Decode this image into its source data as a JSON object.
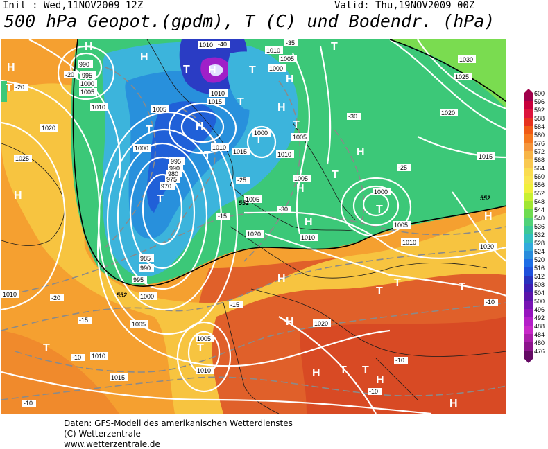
{
  "header": {
    "init": "Init : Wed,11NOV2009  12Z",
    "valid": "Valid: Thu,19NOV2009 00Z",
    "title": "500 hPa Geopot.(gpdm), T (C) und Bodendr. (hPa)"
  },
  "map": {
    "pressure_systems": [
      "H",
      "T",
      "H",
      "T",
      "H",
      "T",
      "T",
      "H",
      "H",
      "T",
      "T",
      "H",
      "T",
      "T",
      "H",
      "T",
      "H",
      "H",
      "T",
      "H",
      "T",
      "H",
      "T",
      "T",
      "T",
      "H",
      "H",
      "T",
      "T",
      "T",
      "T",
      "H",
      "H",
      "H"
    ],
    "isobar_labels": [
      "1010",
      "990",
      "995",
      "1000",
      "1005",
      "1010",
      "1015",
      "1010",
      "1000",
      "1005",
      "1010",
      "1020",
      "1025",
      "1000",
      "1005",
      "1010",
      "1000",
      "1005",
      "995",
      "990",
      "985",
      "970",
      "975",
      "980",
      "990",
      "995",
      "1000",
      "1005",
      "1010",
      "1015",
      "1020",
      "1025",
      "1030",
      "1020",
      "1015",
      "1010",
      "1005",
      "1000",
      "1005",
      "1010",
      "1020",
      "1005",
      "1010",
      "1015",
      "1010",
      "1005",
      "1020",
      "1010"
    ],
    "temperature_labels": [
      "-40",
      "-35",
      "-30",
      "-25",
      "-20",
      "-15",
      "-10"
    ],
    "height_labels": [
      "552",
      "552",
      "552"
    ]
  },
  "colorscale": {
    "values": [
      "600",
      "596",
      "592",
      "588",
      "584",
      "580",
      "576",
      "572",
      "568",
      "564",
      "560",
      "556",
      "552",
      "548",
      "544",
      "540",
      "536",
      "532",
      "528",
      "524",
      "520",
      "516",
      "512",
      "508",
      "504",
      "500",
      "496",
      "492",
      "488",
      "484",
      "480",
      "476"
    ],
    "colors": [
      "#a0004b",
      "#c8003c",
      "#dc143c",
      "#e6321e",
      "#f05a14",
      "#f5781e",
      "#f5963c",
      "#f7b446",
      "#f9c850",
      "#fadc50",
      "#fae650",
      "#f0f03c",
      "#c8f032",
      "#a0e632",
      "#6edc50",
      "#50d278",
      "#3cc896",
      "#32bebe",
      "#32aadc",
      "#288cdc",
      "#1e6ee6",
      "#1e50dc",
      "#2832be",
      "#3c1eb4",
      "#5a14aa",
      "#7814b4",
      "#9614be",
      "#b41ec8",
      "#c828c8",
      "#aa1eaa",
      "#8c148c",
      "#640a64"
    ]
  },
  "footer": {
    "line1": "Daten: GFS-Modell des amerikanischen Wetterdienstes",
    "line2": "(C) Wetterzentrale",
    "line3": "www.wetterzentrale.de"
  }
}
